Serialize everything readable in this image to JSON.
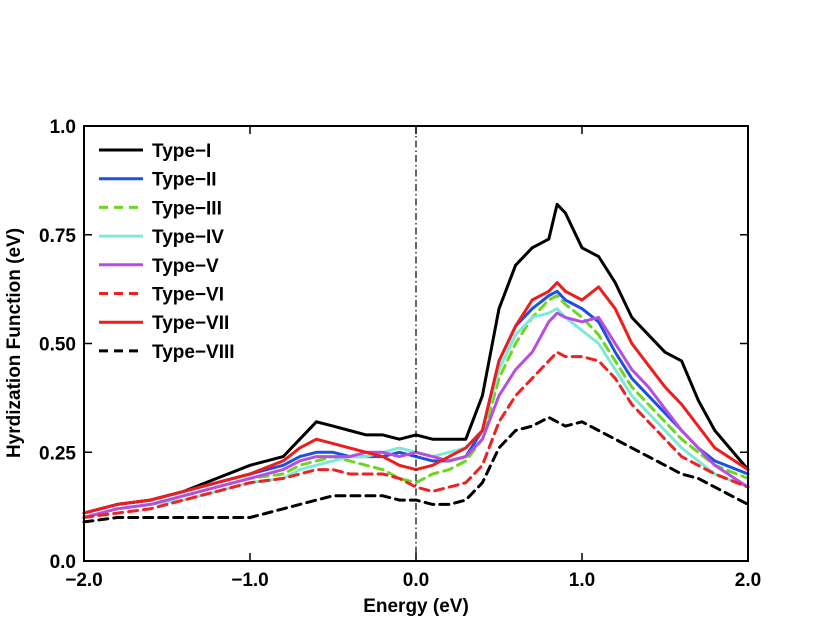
{
  "chart_data": {
    "type": "line",
    "title": "",
    "xlabel": "Energy (eV)",
    "ylabel": "Hyrdization Function (eV)",
    "xlim": [
      -2.0,
      2.0
    ],
    "ylim": [
      0.0,
      1.0
    ],
    "xticks": [
      -2.0,
      -1.0,
      0.0,
      1.0,
      2.0
    ],
    "xtick_labels": [
      "−2.0",
      "−1.0",
      "0.0",
      "1.0",
      "2.0"
    ],
    "yticks": [
      0.0,
      0.25,
      0.5,
      0.75,
      1.0
    ],
    "ytick_labels": [
      "0.0",
      "0.25",
      "0.50",
      "0.75",
      "1.0"
    ],
    "vline_x": 0.0,
    "legend_position": "top-left",
    "x": [
      -2.0,
      -1.8,
      -1.6,
      -1.4,
      -1.2,
      -1.0,
      -0.8,
      -0.7,
      -0.6,
      -0.5,
      -0.4,
      -0.3,
      -0.2,
      -0.1,
      0.0,
      0.1,
      0.2,
      0.3,
      0.4,
      0.5,
      0.6,
      0.7,
      0.8,
      0.85,
      0.9,
      1.0,
      1.1,
      1.2,
      1.3,
      1.4,
      1.5,
      1.6,
      1.7,
      1.8,
      2.0
    ],
    "series": [
      {
        "name": "Type−I",
        "color": "#000000",
        "dash": "solid",
        "values": [
          0.11,
          0.13,
          0.14,
          0.16,
          0.19,
          0.22,
          0.24,
          0.28,
          0.32,
          0.31,
          0.3,
          0.29,
          0.29,
          0.28,
          0.29,
          0.28,
          0.28,
          0.28,
          0.38,
          0.58,
          0.68,
          0.72,
          0.74,
          0.82,
          0.8,
          0.72,
          0.7,
          0.64,
          0.56,
          0.52,
          0.48,
          0.46,
          0.37,
          0.3,
          0.21
        ]
      },
      {
        "name": "Type−II",
        "color": "#1f4fe0",
        "dash": "solid",
        "values": [
          0.11,
          0.13,
          0.14,
          0.16,
          0.18,
          0.2,
          0.22,
          0.24,
          0.25,
          0.25,
          0.24,
          0.24,
          0.24,
          0.25,
          0.24,
          0.23,
          0.23,
          0.24,
          0.3,
          0.46,
          0.54,
          0.58,
          0.61,
          0.62,
          0.6,
          0.58,
          0.55,
          0.48,
          0.42,
          0.38,
          0.34,
          0.3,
          0.26,
          0.23,
          0.2
        ]
      },
      {
        "name": "Type−III",
        "color": "#6ed61f",
        "dash": "dashed",
        "values": [
          0.1,
          0.12,
          0.13,
          0.15,
          0.17,
          0.19,
          0.2,
          0.22,
          0.23,
          0.24,
          0.23,
          0.22,
          0.21,
          0.19,
          0.18,
          0.2,
          0.21,
          0.23,
          0.28,
          0.42,
          0.5,
          0.56,
          0.6,
          0.61,
          0.59,
          0.56,
          0.52,
          0.46,
          0.4,
          0.36,
          0.32,
          0.28,
          0.25,
          0.22,
          0.19
        ]
      },
      {
        "name": "Type−IV",
        "color": "#7fe8d6",
        "dash": "solid",
        "values": [
          0.1,
          0.12,
          0.13,
          0.14,
          0.16,
          0.18,
          0.19,
          0.21,
          0.22,
          0.23,
          0.24,
          0.24,
          0.25,
          0.26,
          0.25,
          0.24,
          0.25,
          0.26,
          0.3,
          0.44,
          0.52,
          0.56,
          0.57,
          0.58,
          0.56,
          0.53,
          0.5,
          0.44,
          0.38,
          0.34,
          0.3,
          0.26,
          0.23,
          0.2,
          0.17
        ]
      },
      {
        "name": "Type−V",
        "color": "#b64fe0",
        "dash": "solid",
        "values": [
          0.1,
          0.12,
          0.13,
          0.15,
          0.17,
          0.19,
          0.21,
          0.23,
          0.24,
          0.24,
          0.24,
          0.25,
          0.25,
          0.24,
          0.25,
          0.24,
          0.23,
          0.24,
          0.28,
          0.38,
          0.44,
          0.48,
          0.55,
          0.57,
          0.56,
          0.55,
          0.56,
          0.5,
          0.44,
          0.4,
          0.35,
          0.3,
          0.26,
          0.22,
          0.17
        ]
      },
      {
        "name": "Type−VI",
        "color": "#ee2222",
        "dash": "dashed",
        "values": [
          0.1,
          0.11,
          0.12,
          0.14,
          0.16,
          0.18,
          0.19,
          0.2,
          0.21,
          0.21,
          0.2,
          0.2,
          0.2,
          0.19,
          0.17,
          0.16,
          0.17,
          0.18,
          0.22,
          0.32,
          0.38,
          0.42,
          0.46,
          0.48,
          0.47,
          0.47,
          0.46,
          0.42,
          0.36,
          0.32,
          0.28,
          0.24,
          0.22,
          0.2,
          0.17
        ]
      },
      {
        "name": "Type−VII",
        "color": "#ee1c1c",
        "dash": "solid",
        "values": [
          0.11,
          0.13,
          0.14,
          0.16,
          0.18,
          0.2,
          0.23,
          0.26,
          0.28,
          0.27,
          0.26,
          0.25,
          0.24,
          0.22,
          0.21,
          0.22,
          0.24,
          0.26,
          0.3,
          0.46,
          0.54,
          0.6,
          0.62,
          0.64,
          0.62,
          0.6,
          0.63,
          0.58,
          0.5,
          0.45,
          0.4,
          0.36,
          0.31,
          0.26,
          0.21
        ]
      },
      {
        "name": "Type−VIII",
        "color": "#000000",
        "dash": "dashed",
        "values": [
          0.09,
          0.1,
          0.1,
          0.1,
          0.1,
          0.1,
          0.12,
          0.13,
          0.14,
          0.15,
          0.15,
          0.15,
          0.15,
          0.14,
          0.14,
          0.13,
          0.13,
          0.14,
          0.18,
          0.26,
          0.3,
          0.31,
          0.33,
          0.32,
          0.31,
          0.32,
          0.3,
          0.28,
          0.26,
          0.24,
          0.22,
          0.2,
          0.19,
          0.17,
          0.13
        ]
      }
    ]
  }
}
